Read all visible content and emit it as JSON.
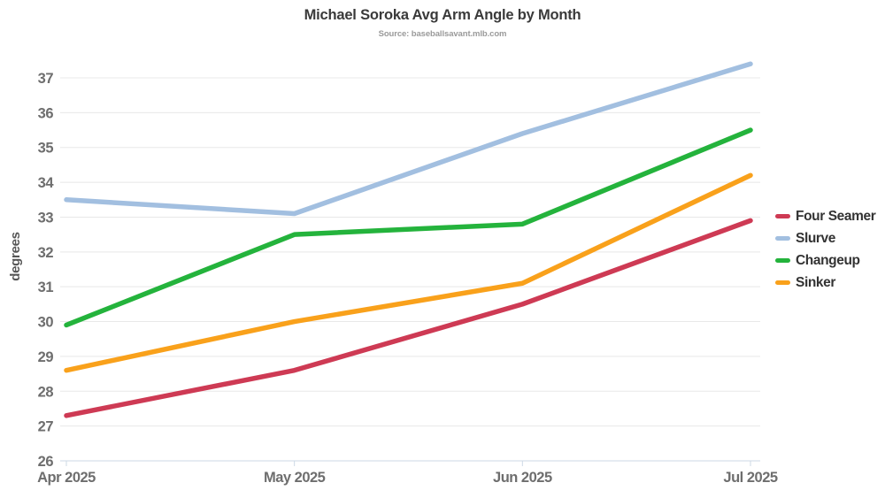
{
  "title": "Michael Soroka Avg Arm Angle by Month",
  "subtitle": "Source: baseballsavant.mlb.com",
  "chart_data": {
    "type": "line",
    "categories": [
      "Apr 2025",
      "May 2025",
      "Jun 2025",
      "Jul 2025"
    ],
    "series": [
      {
        "name": "Four Seamer",
        "color": "#ce3a54",
        "values": [
          27.3,
          28.6,
          30.5,
          32.9
        ]
      },
      {
        "name": "Slurve",
        "color": "#a2bfe0",
        "values": [
          33.5,
          33.1,
          35.4,
          37.4
        ]
      },
      {
        "name": "Changeup",
        "color": "#24b33c",
        "values": [
          29.9,
          32.5,
          32.8,
          35.5
        ]
      },
      {
        "name": "Sinker",
        "color": "#f9a11b",
        "values": [
          28.6,
          30.0,
          31.1,
          34.2
        ]
      }
    ],
    "xlabel": "",
    "ylabel": "degrees",
    "yticks": [
      26,
      27,
      28,
      29,
      30,
      31,
      32,
      33,
      34,
      35,
      36,
      37
    ],
    "ylim": [
      26,
      37.6
    ],
    "grid": true,
    "legend_position": "right"
  }
}
